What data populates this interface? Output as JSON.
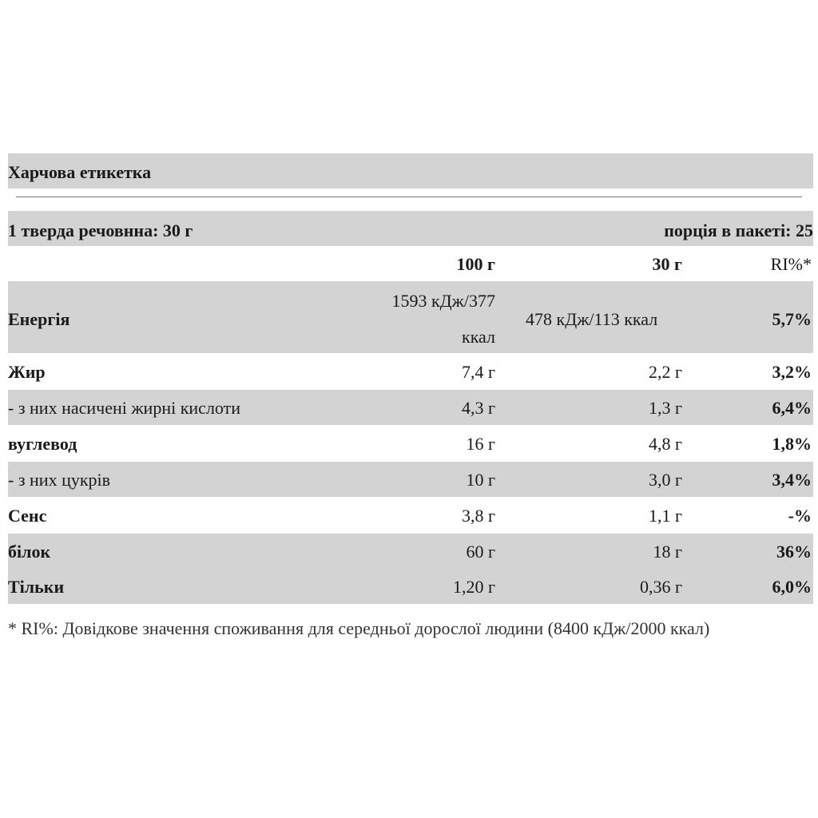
{
  "title": "Харчова етикетка",
  "serving": {
    "left": "1 тверда речовнна: 30 г",
    "right": "порція в пакеті: 25"
  },
  "columns": {
    "per100": "100 г",
    "per30": "30 г",
    "ri": "RI%*"
  },
  "rows": [
    {
      "name": "Енергія",
      "v100_line1": "1593 кДж/377",
      "v100_line2": "ккал",
      "v30": "478 кДж/113 ккал",
      "ri": "5,7%"
    },
    {
      "name": "Жир",
      "v100": "7,4 г",
      "v30": "2,2 г",
      "ri": "3,2%"
    },
    {
      "name": "- з них насичені жирні кислоти",
      "v100": "4,3 г",
      "v30": "1,3 г",
      "ri": "6,4%"
    },
    {
      "name": "вуглевод",
      "v100": "16 г",
      "v30": "4,8 г",
      "ri": "1,8%"
    },
    {
      "name": "- з них цукрів",
      "v100": "10 г",
      "v30": "3,0 г",
      "ri": "3,4%"
    },
    {
      "name": "Сенс",
      "v100": "3,8 г",
      "v30": "1,1 г",
      "ri": "-%"
    },
    {
      "name": "білок",
      "v100": "60 г",
      "v30": "18 г",
      "ri": "36%"
    },
    {
      "name": "Тільки",
      "v100": "1,20 г",
      "v30": "0,36 г",
      "ri": "6,0%"
    }
  ],
  "footnote": "* RI%: Довідкове значення споживання для середньої дорослої людини (8400 кДж/2000 ккал)"
}
